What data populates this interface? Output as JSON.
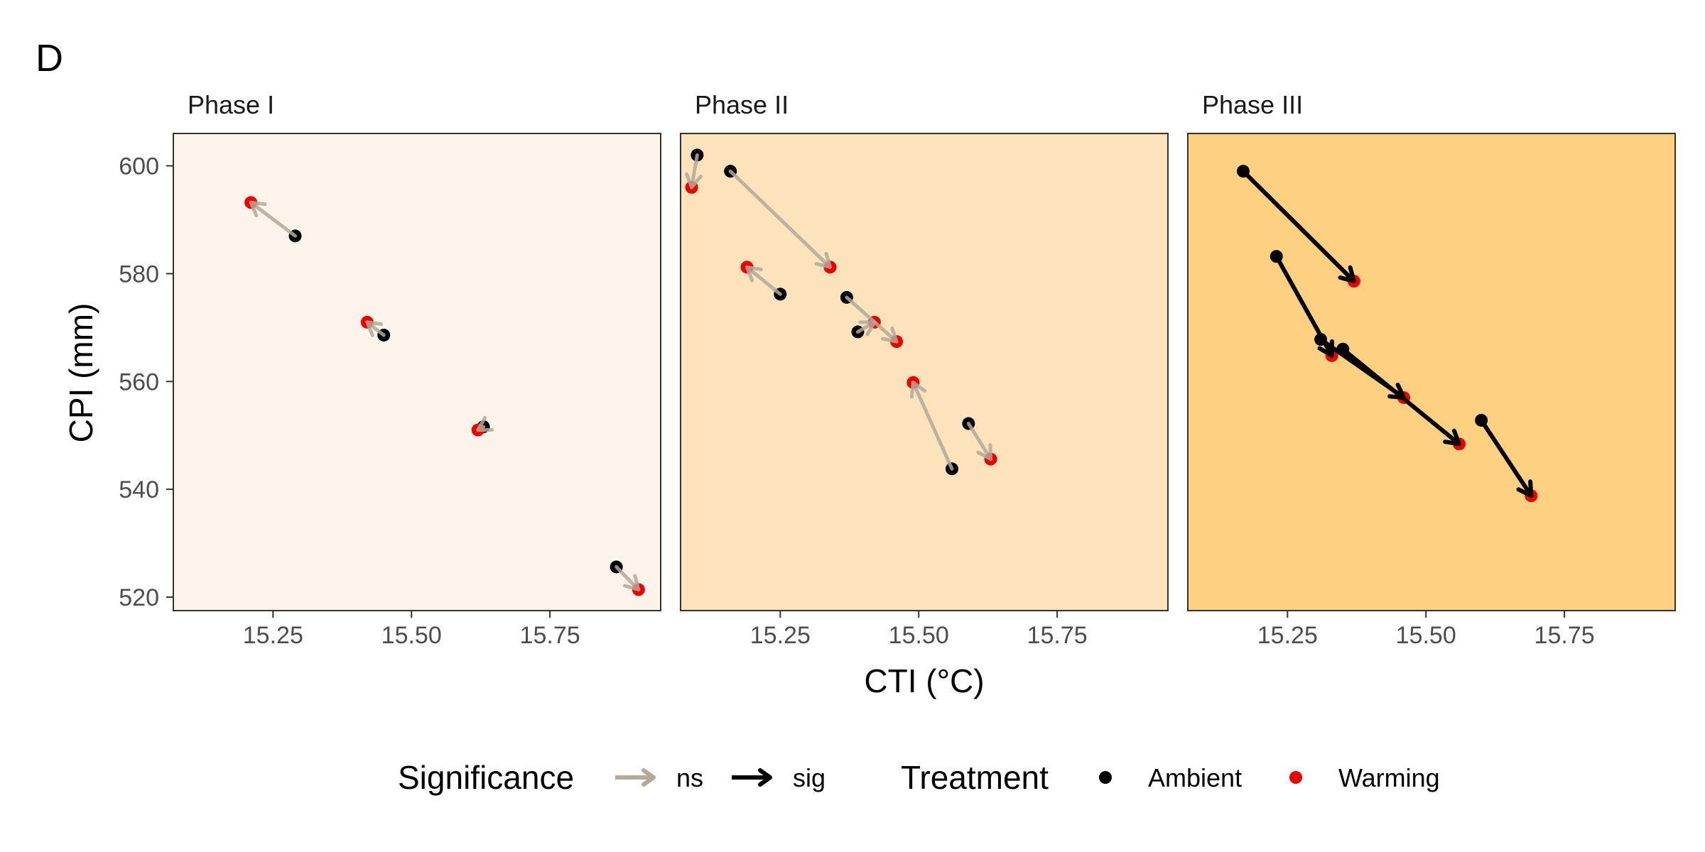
{
  "figure": {
    "panel_tag": "D",
    "xlabel": "CTI (°C)",
    "ylabel": "CPI (mm)"
  },
  "legend": {
    "significance_title": "Significance",
    "treatment_title": "Treatment",
    "ns_label": "ns",
    "sig_label": "sig",
    "ambient_label": "Ambient",
    "warming_label": "Warming"
  },
  "colors": {
    "ambient": "#000000",
    "warming": "#ee0000",
    "ns_arrow": "#b3aa99",
    "sig_arrow": "#000000",
    "phase1_bg": "#fcf4ea",
    "phase2_bg": "#fde3bc",
    "phase3_bg": "#fdd181"
  },
  "chart_data": {
    "type": "scatter",
    "xlim": [
      15.07,
      15.95
    ],
    "ylim": [
      517.5,
      606
    ],
    "x_ticks": [
      15.25,
      15.5,
      15.75
    ],
    "x_tick_labels": [
      "15.25",
      "15.50",
      "15.75"
    ],
    "y_ticks": [
      520,
      540,
      560,
      580,
      600
    ],
    "y_tick_labels": [
      "520",
      "540",
      "560",
      "580",
      "600"
    ],
    "grid": false,
    "legend_position": "bottom",
    "panels": [
      {
        "name": "Phase I",
        "bg": "phase1_bg",
        "segments": [
          {
            "ambient": [
              15.29,
              587.0
            ],
            "warming": [
              15.21,
              593.2
            ],
            "significance": "ns"
          },
          {
            "ambient": [
              15.45,
              568.6
            ],
            "warming": [
              15.42,
              571.0
            ],
            "significance": "ns"
          },
          {
            "ambient": [
              15.63,
              551.6
            ],
            "warming": [
              15.62,
              551.0
            ],
            "significance": "ns"
          },
          {
            "ambient": [
              15.87,
              525.6
            ],
            "warming": [
              15.91,
              521.4
            ],
            "significance": "ns"
          }
        ]
      },
      {
        "name": "Phase II",
        "bg": "phase2_bg",
        "segments": [
          {
            "ambient": [
              15.1,
              602.0
            ],
            "warming": [
              15.09,
              596.0
            ],
            "significance": "ns"
          },
          {
            "ambient": [
              15.16,
              599.0
            ],
            "warming": [
              15.34,
              581.2
            ],
            "significance": "ns"
          },
          {
            "ambient": [
              15.25,
              576.2
            ],
            "warming": [
              15.19,
              581.2
            ],
            "significance": "ns"
          },
          {
            "ambient": [
              15.37,
              575.6
            ],
            "warming": [
              15.46,
              567.4
            ],
            "significance": "ns"
          },
          {
            "ambient": [
              15.39,
              569.2
            ],
            "warming": [
              15.42,
              571.0
            ],
            "significance": "ns"
          },
          {
            "ambient": [
              15.56,
              543.8
            ],
            "warming": [
              15.49,
              559.8
            ],
            "significance": "ns"
          },
          {
            "ambient": [
              15.59,
              552.2
            ],
            "warming": [
              15.63,
              545.6
            ],
            "significance": "ns"
          }
        ]
      },
      {
        "name": "Phase III",
        "bg": "phase3_bg",
        "segments": [
          {
            "ambient": [
              15.17,
              599.0
            ],
            "warming": [
              15.37,
              578.6
            ],
            "significance": "sig"
          },
          {
            "ambient": [
              15.23,
              583.2
            ],
            "warming": [
              15.33,
              564.8
            ],
            "significance": "sig"
          },
          {
            "ambient": [
              15.31,
              567.8
            ],
            "warming": [
              15.46,
              557.0
            ],
            "significance": "sig"
          },
          {
            "ambient": [
              15.35,
              566.0
            ],
            "warming": [
              15.56,
              548.4
            ],
            "significance": "sig"
          },
          {
            "ambient": [
              15.6,
              552.8
            ],
            "warming": [
              15.69,
              538.8
            ],
            "significance": "sig"
          }
        ]
      }
    ]
  }
}
